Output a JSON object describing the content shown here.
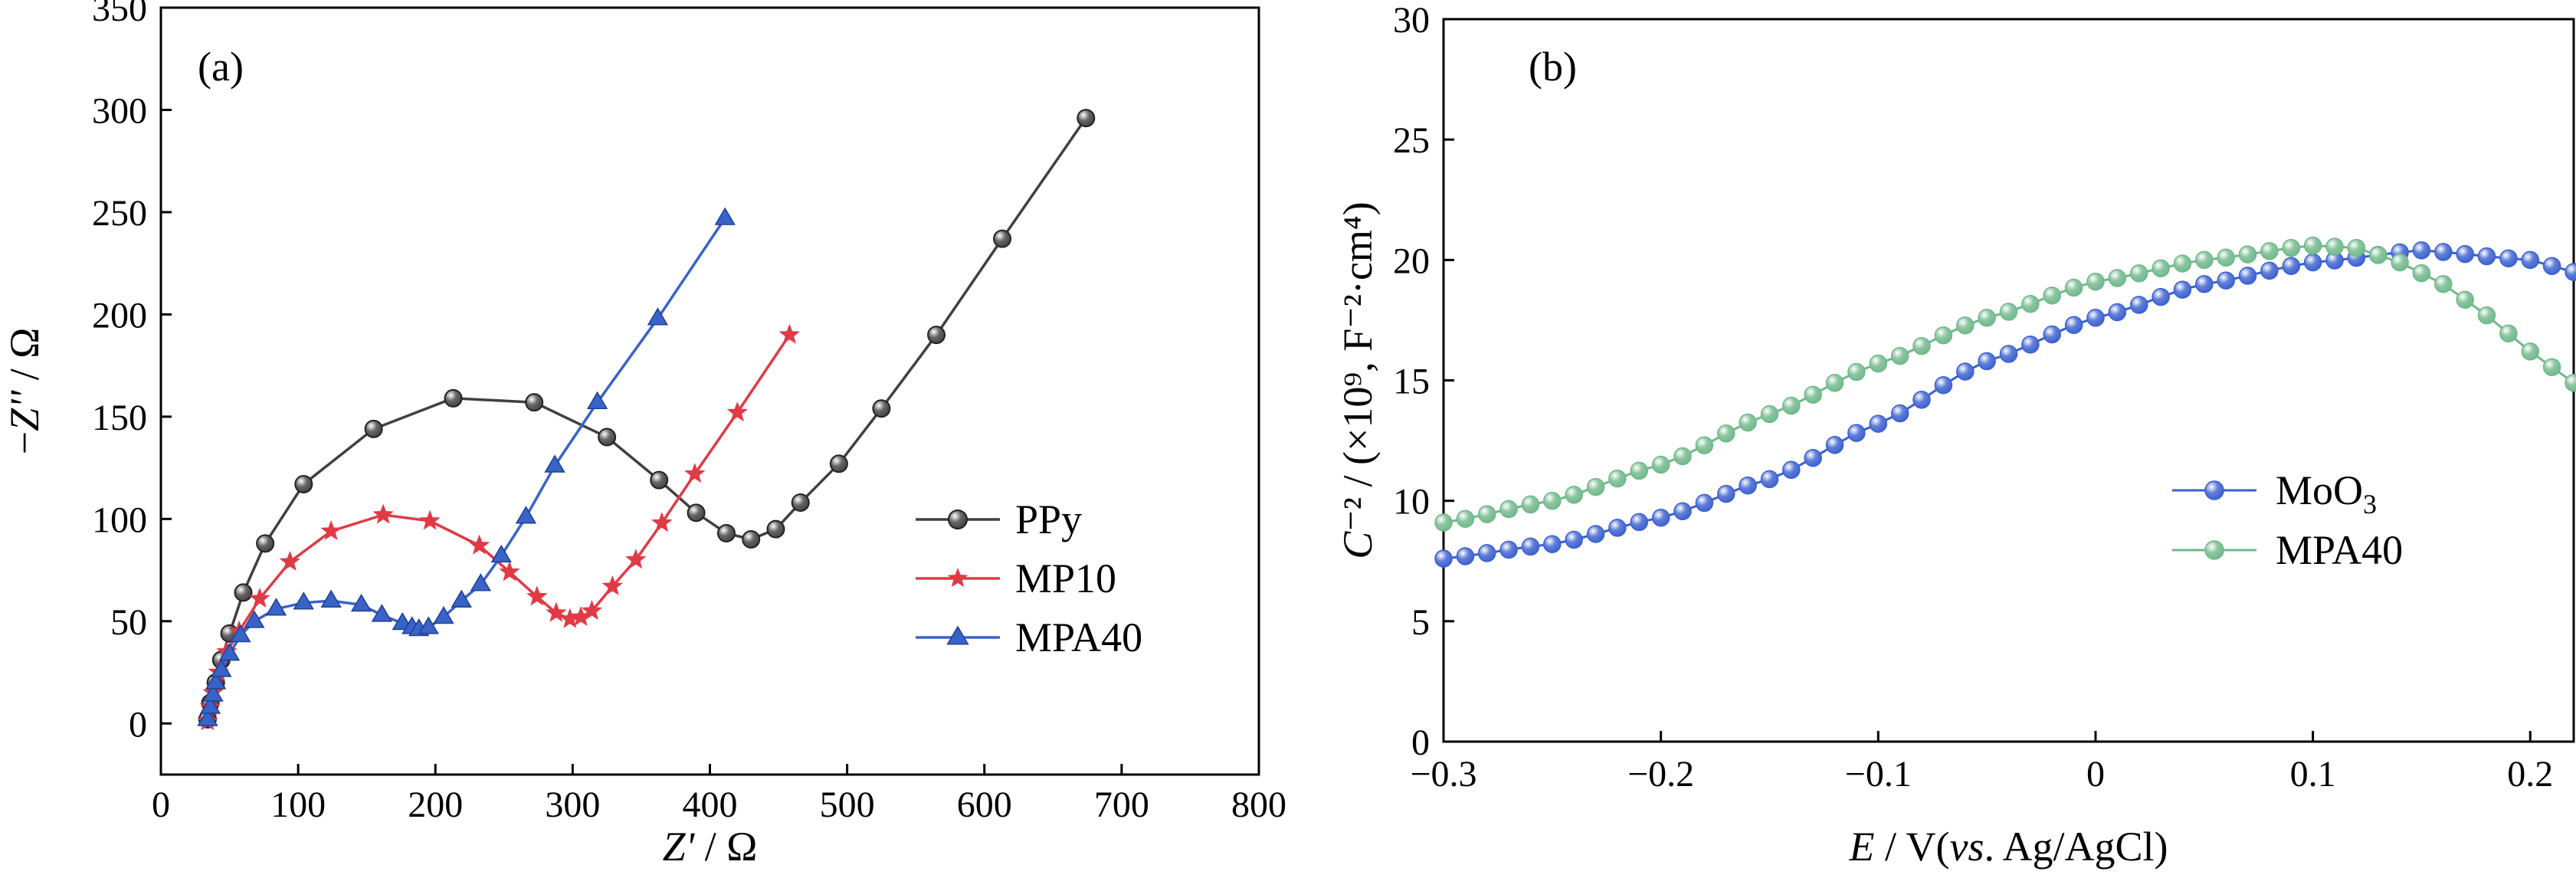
{
  "chart_data": [
    {
      "panel": "a",
      "type": "scatter",
      "panel_label": "(a)",
      "xlabel": "Z' / Ω",
      "ylabel": "−Z'' / Ω",
      "xlim": [
        0,
        800
      ],
      "ylim": [
        -25,
        350
      ],
      "xticks": [
        0,
        100,
        200,
        300,
        400,
        500,
        600,
        700,
        800
      ],
      "yticks": [
        0,
        50,
        100,
        150,
        200,
        250,
        300,
        350
      ],
      "grid": false,
      "legend_position": "lower-right",
      "series": [
        {
          "name": "PPy",
          "color": "#404040",
          "marker": "circle",
          "points": [
            [
              34,
              2
            ],
            [
              36,
              10
            ],
            [
              40,
              20
            ],
            [
              44,
              31
            ],
            [
              50,
              44
            ],
            [
              60,
              64
            ],
            [
              76,
              88
            ],
            [
              104,
              117
            ],
            [
              155,
              144
            ],
            [
              213,
              159
            ],
            [
              272,
              157
            ],
            [
              325,
              140
            ],
            [
              363,
              119
            ],
            [
              390,
              103
            ],
            [
              412,
              93
            ],
            [
              430,
              90
            ],
            [
              448,
              95
            ],
            [
              466,
              108
            ],
            [
              494,
              127
            ],
            [
              525,
              154
            ],
            [
              565,
              190
            ],
            [
              613,
              237
            ],
            [
              674,
              296
            ]
          ]
        },
        {
          "name": "MP10",
          "color": "#e03a46",
          "marker": "star",
          "points": [
            [
              34,
              1
            ],
            [
              36,
              8
            ],
            [
              38,
              15
            ],
            [
              42,
              25
            ],
            [
              48,
              35
            ],
            [
              57,
              45
            ],
            [
              72,
              61
            ],
            [
              94,
              79
            ],
            [
              124,
              94
            ],
            [
              162,
              102
            ],
            [
              196,
              99
            ],
            [
              232,
              87
            ],
            [
              254,
              74
            ],
            [
              274,
              62
            ],
            [
              288,
              54
            ],
            [
              298,
              51
            ],
            [
              306,
              52
            ],
            [
              314,
              55
            ],
            [
              329,
              67
            ],
            [
              346,
              80
            ],
            [
              365,
              98
            ],
            [
              389,
              122
            ],
            [
              420,
              152
            ],
            [
              458,
              190
            ]
          ]
        },
        {
          "name": "MPA40",
          "color": "#3a63c9",
          "marker": "triangle",
          "points": [
            [
              34,
              2
            ],
            [
              36,
              8
            ],
            [
              38,
              14
            ],
            [
              40,
              20
            ],
            [
              44,
              26
            ],
            [
              50,
              34
            ],
            [
              58,
              43
            ],
            [
              68,
              50
            ],
            [
              84,
              56
            ],
            [
              104,
              59
            ],
            [
              124,
              60
            ],
            [
              146,
              58
            ],
            [
              161,
              53
            ],
            [
              176,
              49
            ],
            [
              183,
              47
            ],
            [
              188,
              46
            ],
            [
              195,
              47
            ],
            [
              206,
              52
            ],
            [
              219,
              60
            ],
            [
              233,
              68
            ],
            [
              248,
              82
            ],
            [
              266,
              101
            ],
            [
              287,
              126
            ],
            [
              318,
              157
            ],
            [
              362,
              198
            ],
            [
              411,
              247
            ]
          ]
        }
      ]
    },
    {
      "panel": "b",
      "type": "scatter",
      "panel_label": "(b)",
      "xlabel": "E / V(vs. Ag/AgCl)",
      "ylabel": "C⁻² / (×10⁹, F⁻²·cm⁴)",
      "xlim": [
        -0.3,
        0.22
      ],
      "ylim": [
        0,
        30
      ],
      "xticks": [
        -0.3,
        -0.2,
        -0.1,
        0,
        0.1,
        0.2
      ],
      "xtick_labels": [
        "−0.3",
        "−0.2",
        "−0.1",
        "0",
        "0.1",
        "0.2"
      ],
      "yticks": [
        0,
        5,
        10,
        15,
        20,
        25,
        30
      ],
      "grid": false,
      "legend_position": "center-right",
      "series": [
        {
          "name": "MoO3",
          "legend_label": "MoO",
          "legend_subscript": "3",
          "color": "#3a5fcf",
          "anchors": [
            [
              -0.3,
              7.6
            ],
            [
              -0.25,
              8.2
            ],
            [
              -0.2,
              9.3
            ],
            [
              -0.15,
              10.9
            ],
            [
              -0.1,
              13.2
            ],
            [
              -0.05,
              15.8
            ],
            [
              0,
              17.6
            ],
            [
              0.05,
              19.0
            ],
            [
              0.1,
              19.9
            ],
            [
              0.15,
              20.4
            ],
            [
              0.2,
              20.0
            ],
            [
              0.22,
              19.5
            ]
          ]
        },
        {
          "name": "MPA40",
          "legend_label": "MPA40",
          "legend_subscript": "",
          "color": "#6fb88a",
          "anchors": [
            [
              -0.3,
              9.1
            ],
            [
              -0.25,
              10.0
            ],
            [
              -0.2,
              11.5
            ],
            [
              -0.15,
              13.6
            ],
            [
              -0.1,
              15.7
            ],
            [
              -0.05,
              17.6
            ],
            [
              0,
              19.1
            ],
            [
              0.05,
              20.0
            ],
            [
              0.1,
              20.6
            ],
            [
              0.12,
              20.5
            ],
            [
              0.14,
              19.9
            ],
            [
              0.16,
              19.0
            ],
            [
              0.18,
              17.7
            ],
            [
              0.2,
              16.2
            ],
            [
              0.22,
              14.9
            ]
          ]
        }
      ]
    }
  ]
}
